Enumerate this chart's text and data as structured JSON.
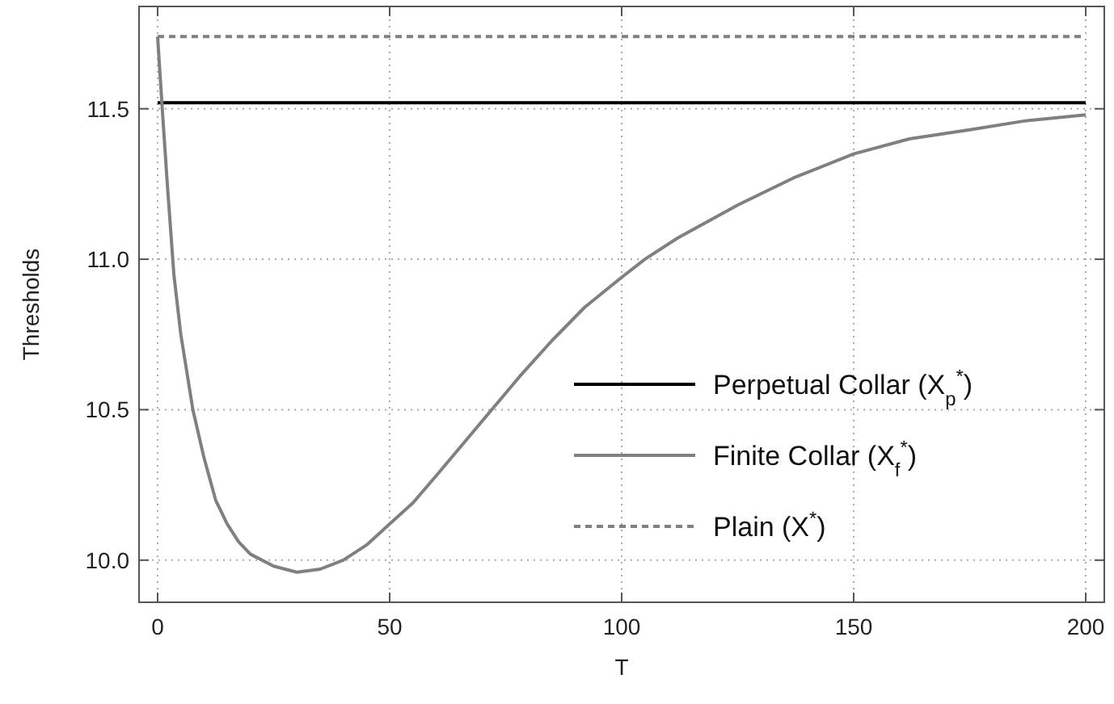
{
  "chart_data": {
    "type": "line",
    "xlabel": "T",
    "ylabel": "Thresholds",
    "xlim": [
      -4,
      204
    ],
    "ylim": [
      9.86,
      11.84
    ],
    "xticks": [
      0,
      50,
      100,
      150,
      200
    ],
    "yticks": [
      {
        "value": 10,
        "label": "10.0"
      },
      {
        "value": 10.5,
        "label": "10.5"
      },
      {
        "value": 11,
        "label": "11.0"
      },
      {
        "value": 11.5,
        "label": "11.5"
      }
    ],
    "grid": true,
    "legend": "bottom right",
    "series": [
      {
        "name": "Perpetual Collar (X$_{p}$$^{*}$)",
        "color": "#000000",
        "line_style": "solid",
        "x": [
          0,
          200
        ],
        "values": [
          11.52,
          11.52
        ]
      },
      {
        "name": "Finite Collar (X$_{f}$$^{*}$)",
        "color": "#808080",
        "line_style": "solid",
        "x": [
          0,
          1,
          2,
          3.5,
          5,
          7.6,
          10,
          12.5,
          15,
          17.5,
          20,
          25,
          30,
          35,
          40,
          45,
          50,
          55,
          60,
          66,
          72,
          78,
          85,
          92,
          100,
          105,
          112,
          125,
          137,
          150,
          162,
          175,
          187,
          200
        ],
        "values": [
          11.74,
          11.5,
          11.27,
          10.95,
          10.75,
          10.5,
          10.34,
          10.2,
          10.12,
          10.06,
          10.02,
          9.98,
          9.96,
          9.97,
          10.0,
          10.05,
          10.12,
          10.19,
          10.28,
          10.39,
          10.5,
          10.61,
          10.73,
          10.84,
          10.94,
          11.0,
          11.07,
          11.18,
          11.27,
          11.35,
          11.4,
          11.43,
          11.46,
          11.48
        ]
      },
      {
        "name": "Plain (X$^{*}$)",
        "color": "#808080",
        "line_style": "dashed",
        "x": [
          0,
          200
        ],
        "values": [
          11.74,
          11.74
        ]
      }
    ]
  }
}
